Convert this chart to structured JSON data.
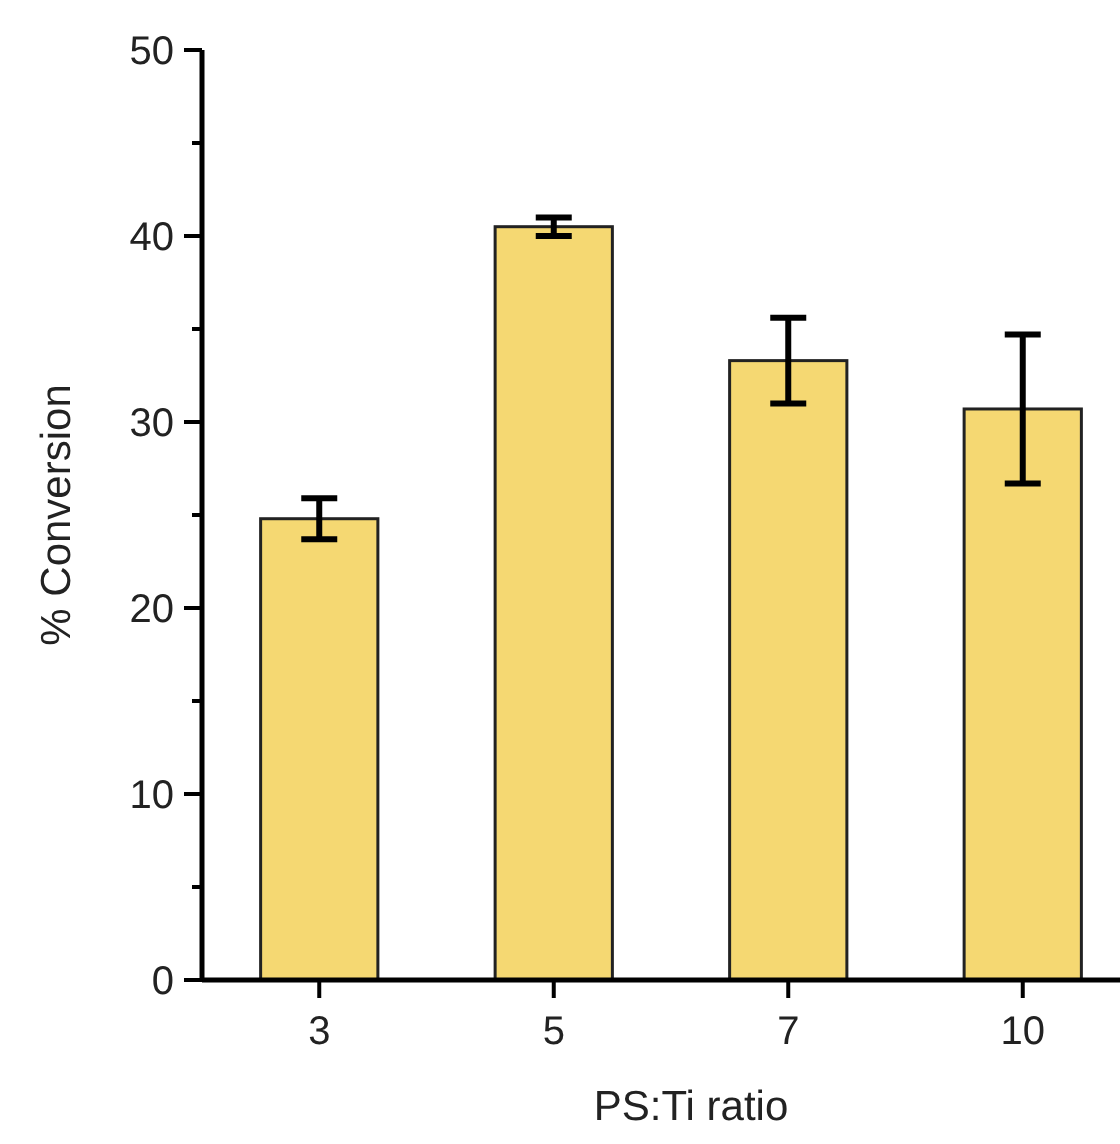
{
  "chart_data": {
    "type": "bar",
    "xlabel": "PS:Ti ratio",
    "ylabel": "% Conversion",
    "categories": [
      "3",
      "5",
      "7",
      "10"
    ],
    "values": [
      24.8,
      40.5,
      33.3,
      30.7
    ],
    "errors": [
      1.1,
      0.5,
      2.3,
      4.0
    ],
    "color": "#f5d872",
    "ylim": [
      0,
      50
    ],
    "yticks": [
      0,
      {
        "value": 5,
        "label": null
      },
      10,
      {
        "value": 15,
        "label": null
      },
      20,
      {
        "value": 25,
        "label": null
      },
      30,
      {
        "value": 35,
        "label": null
      },
      40,
      {
        "value": 45,
        "label": null
      },
      50
    ]
  }
}
